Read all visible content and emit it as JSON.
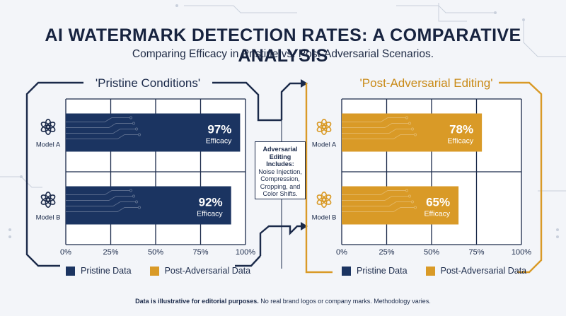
{
  "header": {
    "title": "AI WATERMARK DETECTION RATES: A COMPARATIVE ANALYSIS",
    "subtitle": "Comparing Efficacy in Pristine vs. Post-Adversarial Scenarios."
  },
  "note": {
    "heading": "Adversarial Editing Includes:",
    "body": "Noise Injection, Compression, Cropping, and Color Shifts."
  },
  "legend": {
    "pristine_label": "Pristine Data",
    "adversarial_label": "Post-Adversarial Data"
  },
  "footer": {
    "bold": "Data is illustrative for editorial purposes.",
    "rest": " No real brand logos or company marks. Methodology varies."
  },
  "colors": {
    "pristine": "#1b3461",
    "adversarial": "#d99a27",
    "frame_dark": "#1b2a4a",
    "background": "#f3f5f9"
  },
  "icons": {
    "model_logo": "openai-knot-icon"
  },
  "chart_data": [
    {
      "type": "bar",
      "orientation": "horizontal",
      "title": "'Pristine Conditions'",
      "categories": [
        "Model A",
        "Model B"
      ],
      "values": [
        97,
        92
      ],
      "value_labels": [
        "97%",
        "92%"
      ],
      "value_sublabel": "Efficacy",
      "xticks": [
        "0%",
        "25%",
        "50%",
        "75%",
        "100%"
      ],
      "xlim": [
        0,
        100
      ],
      "grid": true,
      "color": "#1b3461"
    },
    {
      "type": "bar",
      "orientation": "horizontal",
      "title": "'Post-Adversarial Editing'",
      "categories": [
        "Model A",
        "Model B"
      ],
      "values": [
        78,
        65
      ],
      "value_labels": [
        "78%",
        "65%"
      ],
      "value_sublabel": "Efficacy",
      "xticks": [
        "0%",
        "25%",
        "50%",
        "75%",
        "100%"
      ],
      "xlim": [
        0,
        100
      ],
      "grid": true,
      "color": "#d99a27"
    }
  ]
}
